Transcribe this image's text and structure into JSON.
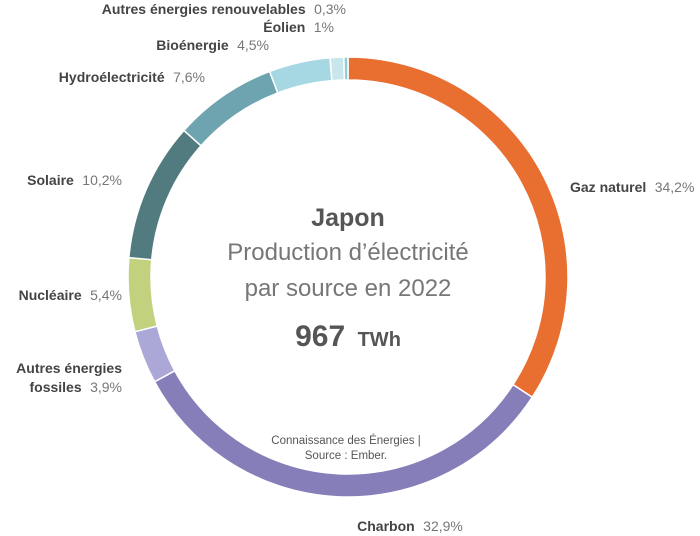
{
  "chart_data": {
    "type": "pie",
    "variant": "donut",
    "country": "Japon",
    "title_line1": "Production d’électricité",
    "title_line2": "par source en 2022",
    "total_value": "967",
    "total_unit": "TWh",
    "credit_line1": "Connaissance des Énergies |",
    "credit_line2": "Source : Ember.",
    "slices": [
      {
        "name": "Gaz naturel",
        "label": "34,2%",
        "value": 34.2,
        "color": "#e86f30"
      },
      {
        "name": "Charbon",
        "label": "32,9%",
        "value": 32.9,
        "color": "#857eb9"
      },
      {
        "name": "Autres énergies fossiles",
        "label": "3,9%",
        "value": 3.9,
        "color": "#aba8d8"
      },
      {
        "name": "Nucléaire",
        "label": "5,4%",
        "value": 5.4,
        "color": "#c2d17e"
      },
      {
        "name": "Solaire",
        "label": "10,2%",
        "value": 10.2,
        "color": "#517b7e"
      },
      {
        "name": "Hydroélectricité",
        "label": "7,6%",
        "value": 7.6,
        "color": "#6da4b0"
      },
      {
        "name": "Bioénergie",
        "label": "4,5%",
        "value": 4.5,
        "color": "#a6d8e4"
      },
      {
        "name": "Éolien",
        "label": "1%",
        "value": 1.0,
        "color": "#c8e6ec"
      },
      {
        "name": "Autres énergies renouvelables",
        "label": "0,3%",
        "value": 0.3,
        "color": "#8fd0d8"
      }
    ]
  }
}
